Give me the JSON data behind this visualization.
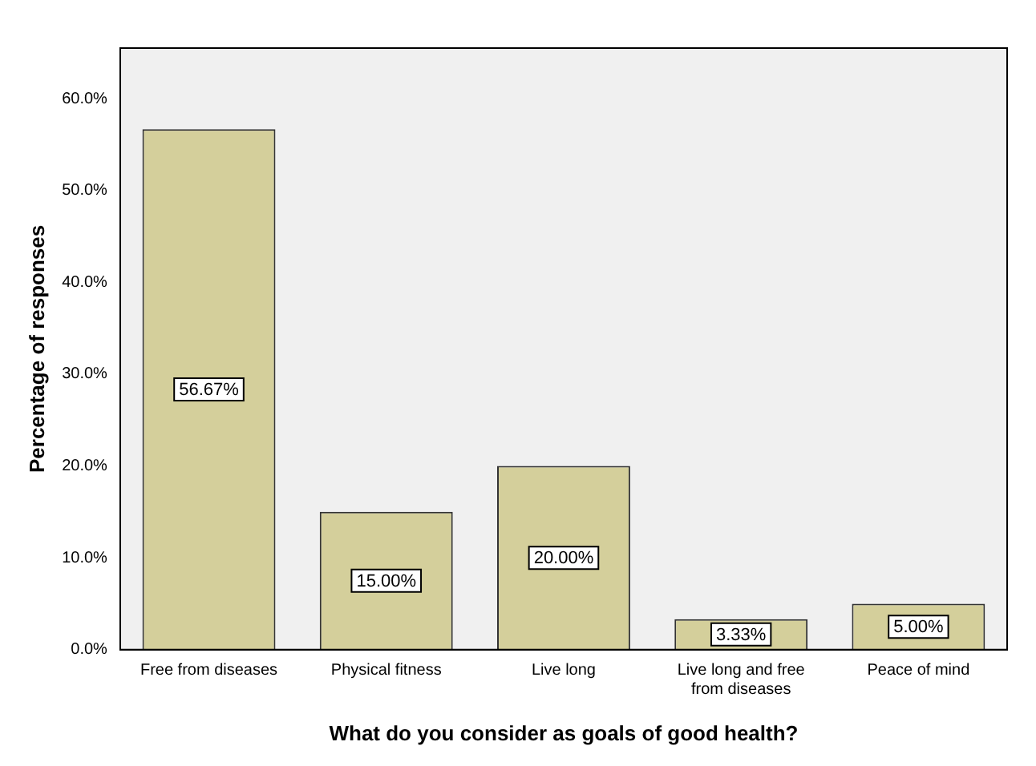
{
  "chart_data": {
    "type": "bar",
    "xlabel": "What do you consider as goals of good health?",
    "ylabel": "Percentage of responses",
    "categories": [
      "Free from diseases",
      "Physical fitness",
      "Live long",
      "Live long and free from diseases",
      "Peace of mind"
    ],
    "values": [
      56.67,
      15.0,
      20.0,
      3.33,
      5.0
    ],
    "color": "#d4cf9b",
    "value_labels": [
      "56.67%",
      "15.00%",
      "20.00%",
      "3.33%",
      "5.00%"
    ],
    "ylim": [
      0,
      65.5
    ],
    "yticks": [
      {
        "value": 0,
        "label": "0.0%"
      },
      {
        "value": 10,
        "label": "10.0%"
      },
      {
        "value": 20,
        "label": "20.0%"
      },
      {
        "value": 30,
        "label": "30.0%"
      },
      {
        "value": 40,
        "label": "40.0%"
      },
      {
        "value": 50,
        "label": "50.0%"
      },
      {
        "value": 60,
        "label": "60.0%"
      }
    ],
    "grid": false,
    "legend": false
  }
}
